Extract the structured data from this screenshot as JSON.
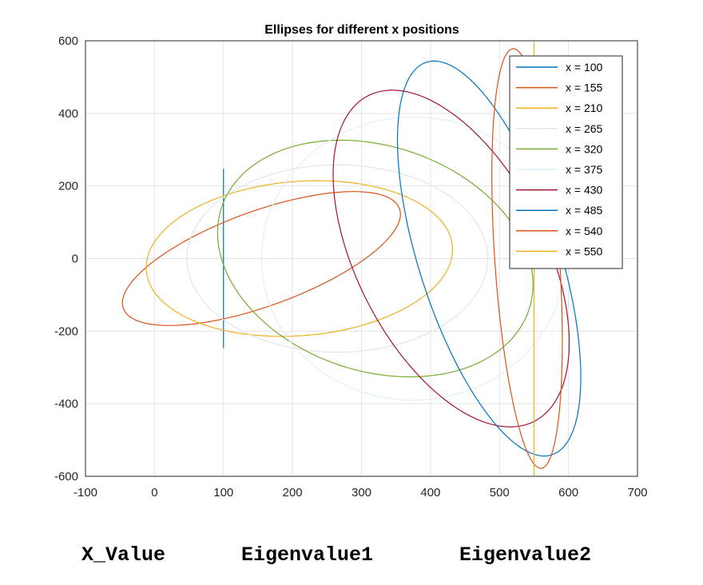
{
  "chart_data": {
    "type": "line",
    "title": "Ellipses for different x positions",
    "xlim": [
      -100,
      700
    ],
    "ylim": [
      -600,
      600
    ],
    "xticks": [
      "-100",
      "0",
      "100",
      "200",
      "300",
      "400",
      "500",
      "600",
      "700"
    ],
    "yticks": [
      "600",
      "400",
      "200",
      "0",
      "-200",
      "-400",
      "-600"
    ],
    "grid": true,
    "legend_placement": "top-right",
    "series": [
      {
        "name": "x = 100",
        "color": "#0072BD",
        "center": [
          100,
          0
        ],
        "extent": [
          0,
          247
        ],
        "points": [
          [
            100,
            247
          ],
          [
            100,
            -247
          ]
        ]
      },
      {
        "name": "x = 155",
        "color": "#D95319",
        "center": [
          155,
          0
        ],
        "extent": [
          200,
          185
        ],
        "points": [
          [
            -45,
            -105
          ],
          [
            40,
            -180
          ],
          [
            155,
            0
          ],
          [
            230,
            185
          ],
          [
            355,
            105
          ]
        ]
      },
      {
        "name": "x = 210",
        "color": "#EDB120",
        "center": [
          210,
          0
        ],
        "extent": [
          222,
          213
        ],
        "points": [
          [
            -12,
            -25
          ],
          [
            210,
            -213
          ],
          [
            433,
            25
          ],
          [
            210,
            213
          ]
        ]
      },
      {
        "name": "x = 265",
        "color": "#E3E3F0",
        "center": [
          265,
          0
        ],
        "extent": [
          218,
          258
        ]
      },
      {
        "name": "x = 320",
        "color": "#77AC30",
        "center": [
          320,
          0
        ],
        "extent": [
          223,
          326
        ],
        "points": [
          [
            97,
            0
          ],
          [
            270,
            326
          ],
          [
            543,
            0
          ],
          [
            370,
            -326
          ]
        ]
      },
      {
        "name": "x = 375",
        "color": "#E0F0FA",
        "center": [
          375,
          0
        ],
        "extent": [
          220,
          390
        ]
      },
      {
        "name": "x = 430",
        "color": "#A2142F",
        "center": [
          430,
          0
        ],
        "extent": [
          162,
          455
        ],
        "points": [
          [
            268,
            90
          ],
          [
            375,
            455
          ],
          [
            592,
            -90
          ],
          [
            485,
            -455
          ]
        ]
      },
      {
        "name": "x = 485",
        "color": "#0072BD",
        "center": [
          485,
          0
        ],
        "extent": [
          125,
          520
        ],
        "points": [
          [
            360,
            160
          ],
          [
            440,
            520
          ],
          [
            610,
            -160
          ],
          [
            530,
            -520
          ]
        ]
      },
      {
        "name": "x = 540",
        "color": "#D95319",
        "center": [
          540,
          0
        ],
        "extent": [
          47,
          578
        ],
        "points": [
          [
            493,
            0
          ],
          [
            520,
            578
          ],
          [
            587,
            0
          ],
          [
            560,
            -578
          ]
        ]
      },
      {
        "name": "x = 550",
        "color": "#EDB120",
        "center": [
          550,
          0
        ],
        "extent": [
          0,
          598
        ],
        "points": [
          [
            550,
            598
          ],
          [
            550,
            -598
          ]
        ]
      }
    ]
  },
  "footer": {
    "x_label": "X_Value",
    "eig1_label": "Eigenvalue1",
    "eig2_label": "Eigenvalue2"
  }
}
